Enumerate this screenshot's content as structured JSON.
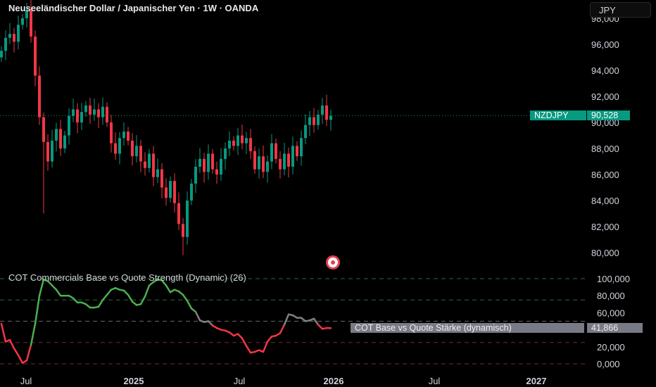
{
  "header": {
    "title": "Neuseeländischer Dollar / Japanischer Yen · 1W · OANDA",
    "currency_button": "JPY"
  },
  "price_tag": {
    "symbol": "NZDJPY",
    "value": "90,528",
    "color": "#089981"
  },
  "indicator": {
    "title": "COT Commercials Base vs Quote Strength (Dynamic) (26)",
    "tag_label": "COT Base vs Quote Stärke (dynamisch)",
    "tag_value": "41,866",
    "colors": {
      "up": "#4caf50",
      "neutral": "#808080",
      "down": "#f23645"
    }
  },
  "chart_data": [
    {
      "type": "candlestick",
      "series": "NZDJPY weekly",
      "interval": "1W",
      "ylim": [
        79.5,
        98.7
      ],
      "y_ticks": [
        "98,000",
        "96,000",
        "94,000",
        "92,000",
        "90,000",
        "88,000",
        "86,000",
        "84,000",
        "82,000",
        "80,000"
      ],
      "closes": [
        95.5,
        96.5,
        96.8,
        96.2,
        97.5,
        98.0,
        98.6,
        96.6,
        93.6,
        90.4,
        88.5,
        87.0,
        88.6,
        89.5,
        88.0,
        89.0,
        90.5,
        91.0,
        90.0,
        90.8,
        91.3,
        90.6,
        91.0,
        90.4,
        91.2,
        90.0,
        88.4,
        87.6,
        88.8,
        89.3,
        88.6,
        87.4,
        88.2,
        87.0,
        86.5,
        87.6,
        85.8,
        86.4,
        85.0,
        84.2,
        85.5,
        83.8,
        82.2,
        81.2,
        84.0,
        85.3,
        86.6,
        87.2,
        86.2,
        87.6,
        86.4,
        86.0,
        87.2,
        88.0,
        88.6,
        88.2,
        89.0,
        88.4,
        88.8,
        87.8,
        86.4,
        87.4,
        86.2,
        87.0,
        88.4,
        87.2,
        86.4,
        87.6,
        86.6,
        88.2,
        87.4,
        88.8,
        89.8,
        90.4,
        89.8,
        90.6,
        91.3,
        90.2,
        90.5
      ],
      "last": 90.528,
      "up_color": "#089981",
      "down_color": "#f23645"
    },
    {
      "type": "line",
      "series": "COT Base vs Quote Strength",
      "ylim": [
        0,
        100
      ],
      "levels": [
        100,
        75,
        50,
        25,
        0
      ],
      "y_ticks": [
        "100,000",
        "80,000",
        "60,000",
        "40,000",
        "20,000",
        "0,000"
      ],
      "values": [
        47,
        26,
        28,
        18,
        10,
        1,
        4,
        22,
        47,
        80,
        99,
        97,
        92,
        87,
        80,
        80,
        80,
        77,
        72,
        72,
        70,
        66,
        66,
        67,
        75,
        81,
        87,
        89,
        87,
        86,
        81,
        73,
        69,
        70,
        79,
        92,
        96,
        99,
        98,
        92,
        84,
        87,
        85,
        81,
        74,
        65,
        61,
        51,
        49,
        50,
        45,
        42,
        40,
        39,
        37,
        33,
        35,
        30,
        21,
        13,
        14,
        16,
        14,
        26,
        32,
        33,
        36,
        46,
        58,
        57,
        54,
        54,
        50,
        51,
        53,
        46,
        41,
        42,
        41.866
      ]
    }
  ],
  "x_axis": {
    "labels": [
      "Jul",
      "2025",
      "Jul",
      "2026",
      "Jul",
      "2027"
    ],
    "bold": [
      false,
      true,
      false,
      true,
      false,
      true
    ]
  }
}
